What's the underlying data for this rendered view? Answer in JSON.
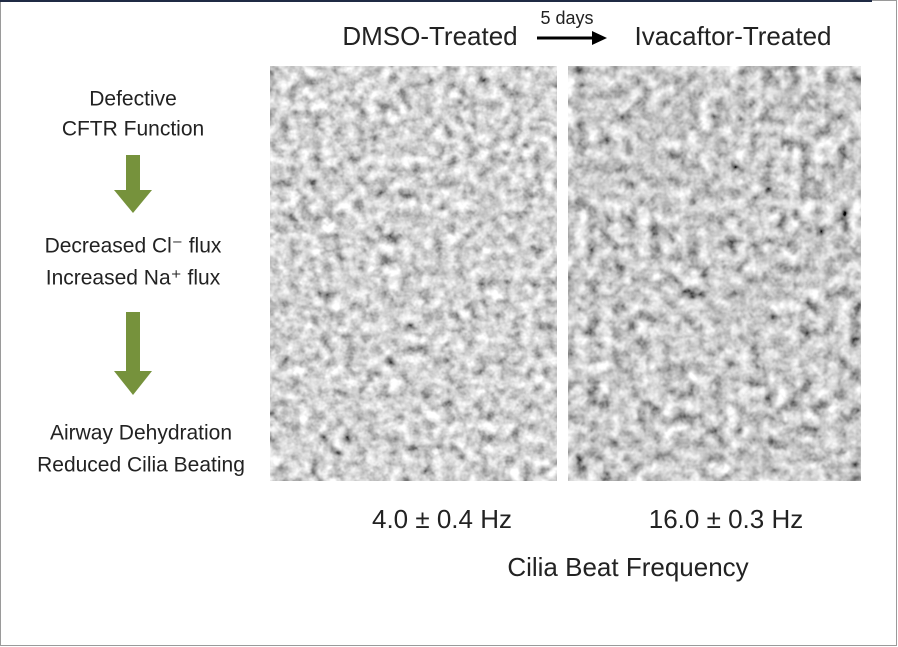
{
  "pathway": [
    {
      "lines": [
        "Defective",
        "CFTR Function"
      ]
    },
    {
      "lines": [
        "Decreased Cl⁻ flux",
        "Increased Na⁺ flux"
      ]
    },
    {
      "lines": [
        "Airway Dehydration",
        "Reduced Cilia Beating"
      ]
    }
  ],
  "conditions": [
    {
      "label": "DMSO-Treated",
      "frequency": "4.0 ± 0.4 Hz"
    },
    {
      "label": "Ivacaftor-Treated",
      "frequency": "16.0 ± 0.3 Hz"
    }
  ],
  "transition": "5 days",
  "frequency_caption": "Cilia Beat Frequency"
}
